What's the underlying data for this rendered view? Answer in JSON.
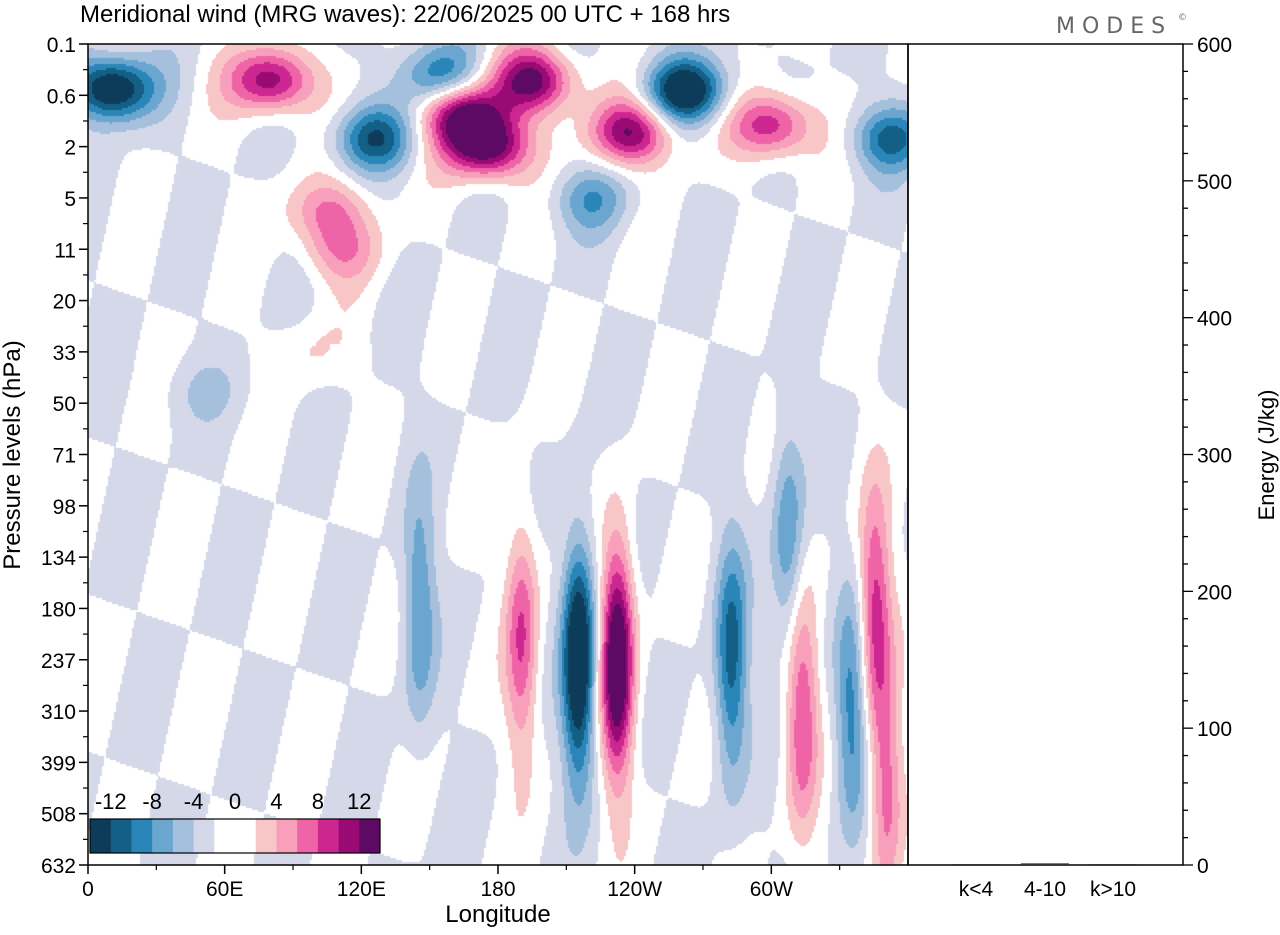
{
  "title": "Meridional wind (MRG waves):  22/06/2025  00 UTC  + 168 hrs",
  "logo": "MODES",
  "logo_mark": "©",
  "chart_data": [
    {
      "type": "heatmap",
      "xlabel": "Longitude",
      "ylabel": "Pressure levels (hPa)",
      "x_tick_labels": [
        "0",
        "60E",
        "120E",
        "180",
        "120W",
        "60W"
      ],
      "y_tick_labels": [
        "0.1",
        "0.6",
        "2",
        "5",
        "11",
        "20",
        "33",
        "50",
        "71",
        "98",
        "134",
        "180",
        "237",
        "310",
        "399",
        "508",
        "632"
      ],
      "y_scale": "categorical pressure levels, 0.1 hPa at top, 632 hPa at bottom",
      "colorbar": {
        "labels": [
          "-12",
          "-8",
          "-4",
          "0",
          "4",
          "8",
          "12"
        ],
        "colors": [
          "#0d3b5a",
          "#135f86",
          "#2a86b8",
          "#6aa6cf",
          "#a5c0dc",
          "#d4d8e8",
          "#ffffff",
          "#ffffff",
          "#f8c6c7",
          "#f79fbb",
          "#ee64a7",
          "#cc2790",
          "#9a0a75",
          "#5c0a63"
        ]
      },
      "features": [
        {
          "kind": "negative",
          "lon": 10,
          "level": 0.45,
          "amp": 14
        },
        {
          "kind": "positive",
          "lon": 80,
          "level": 0.35,
          "amp": 12
        },
        {
          "kind": "negative",
          "lon": 155,
          "level": 0.3,
          "amp": 8
        },
        {
          "kind": "positive",
          "lon": 195,
          "level": 0.35,
          "amp": 13
        },
        {
          "kind": "positive",
          "lon": 165,
          "level": 0.9,
          "amp": 13
        },
        {
          "kind": "positive",
          "lon": 175,
          "level": 2.0,
          "amp": 14
        },
        {
          "kind": "negative",
          "lon": 125,
          "level": 1.6,
          "amp": 9
        },
        {
          "kind": "positive",
          "lon": 238,
          "level": 1.4,
          "amp": 12
        },
        {
          "kind": "negative",
          "lon": 262,
          "level": 0.5,
          "amp": 13
        },
        {
          "kind": "positive",
          "lon": 300,
          "level": 1.2,
          "amp": 10
        },
        {
          "kind": "negative",
          "lon": 352,
          "level": 1.6,
          "amp": 8
        },
        {
          "kind": "positive",
          "lon": 105,
          "level": 6,
          "amp": 6
        },
        {
          "kind": "positive",
          "lon": 110,
          "level": 11,
          "amp": 5
        },
        {
          "kind": "negative",
          "lon": 220,
          "level": 5,
          "amp": 5
        },
        {
          "kind": "positive",
          "lon": 98,
          "level": 33,
          "amp": 2
        },
        {
          "kind": "negative",
          "lon": 50,
          "level": 45,
          "amp": 2
        },
        {
          "kind": "negative",
          "lon": 215,
          "level": 237,
          "amp": 15
        },
        {
          "kind": "positive",
          "lon": 232,
          "level": 237,
          "amp": 16
        },
        {
          "kind": "negative",
          "lon": 282,
          "level": 237,
          "amp": 9
        },
        {
          "kind": "positive",
          "lon": 190,
          "level": 210,
          "amp": 8
        },
        {
          "kind": "positive",
          "lon": 345,
          "level": 180,
          "amp": 9
        },
        {
          "kind": "positive",
          "lon": 313,
          "level": 310,
          "amp": 8
        },
        {
          "kind": "negative",
          "lon": 335,
          "level": 310,
          "amp": 7
        },
        {
          "kind": "negative",
          "lon": 307,
          "level": 120,
          "amp": 6
        },
        {
          "kind": "positive",
          "lon": 350,
          "level": 450,
          "amp": 7
        },
        {
          "kind": "negative",
          "lon": 145,
          "level": 180,
          "amp": 6
        }
      ]
    },
    {
      "type": "bar",
      "ylabel": "Energy (J/kg)",
      "categories": [
        "k<4",
        "4-10",
        "k>10"
      ],
      "values": [
        0.3,
        1.2,
        0.3
      ],
      "ylim": [
        0,
        600
      ],
      "y_tick_labels": [
        "0",
        "100",
        "200",
        "300",
        "400",
        "500",
        "600"
      ]
    }
  ]
}
